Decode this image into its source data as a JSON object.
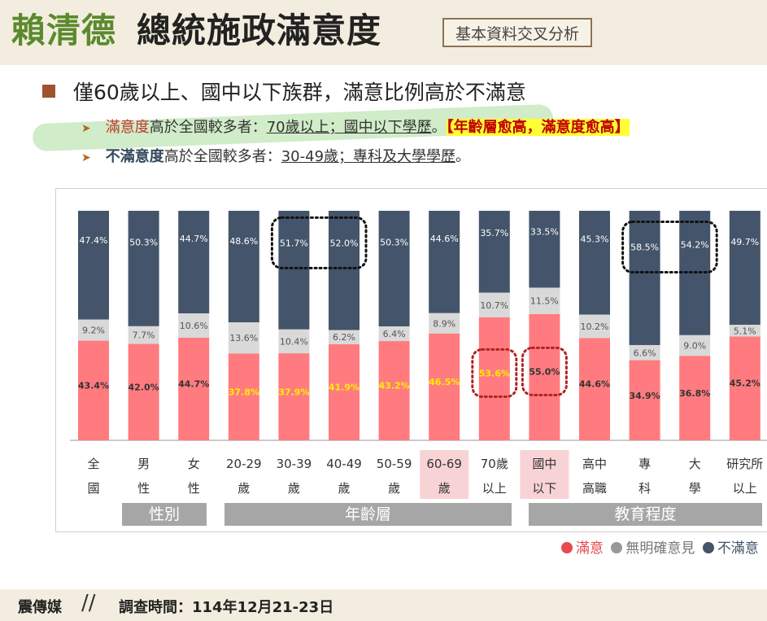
{
  "header": {
    "title_name": "賴清德",
    "title_rest": "總統施政滿意度",
    "tag": "基本資料交叉分析"
  },
  "summary": {
    "main": "僅60歲以上、國中以下族群，滿意比例高於不滿意",
    "line1": {
      "keyword": "滿意度",
      "text": "高於全國較多者：",
      "groups": "70歲以上；國中以下學歷",
      "period": "。",
      "emphasis": "【年齡層愈高，滿意度愈高】"
    },
    "line2": {
      "keyword": "不滿意度",
      "text": "高於全國較多者：",
      "groups": "30-49歲；專科及大學學歷",
      "period": "。"
    }
  },
  "chart_data": {
    "type": "bar",
    "stacked": true,
    "categories": [
      [
        "全",
        "國"
      ],
      [
        "男",
        "性"
      ],
      [
        "女",
        "性"
      ],
      [
        "20-29",
        "歲"
      ],
      [
        "30-39",
        "歲"
      ],
      [
        "40-49",
        "歲"
      ],
      [
        "50-59",
        "歲"
      ],
      [
        "60-69",
        "歲"
      ],
      [
        "70歲",
        "以上"
      ],
      [
        "國中",
        "以下"
      ],
      [
        "高中",
        "高職"
      ],
      [
        "專",
        "科"
      ],
      [
        "大",
        "學"
      ],
      [
        "研究所",
        "以上"
      ]
    ],
    "series": [
      {
        "name": "滿意",
        "color": "#ff7b7f",
        "values": [
          43.4,
          42.0,
          44.7,
          37.8,
          37.9,
          41.9,
          43.2,
          46.5,
          53.6,
          55.0,
          44.6,
          34.9,
          36.8,
          45.2
        ]
      },
      {
        "name": "無明確意見",
        "color": "#d9d9d9",
        "values": [
          9.2,
          7.7,
          10.6,
          13.6,
          10.4,
          6.2,
          6.4,
          8.9,
          10.7,
          11.5,
          10.2,
          6.6,
          9.0,
          5.1
        ]
      },
      {
        "name": "不滿意",
        "color": "#44546a",
        "values": [
          47.4,
          50.3,
          44.7,
          48.6,
          51.7,
          52.0,
          50.3,
          44.6,
          35.7,
          33.5,
          45.3,
          58.5,
          54.2,
          49.7
        ]
      }
    ],
    "groups": [
      {
        "label": "性別"
      },
      {
        "label": "年齡層"
      },
      {
        "label": "教育程度"
      }
    ],
    "highlighted_categories": [
      "60-69歲",
      "國中以下"
    ],
    "yellow_label_indices": [
      3,
      4,
      5,
      6,
      7,
      8
    ],
    "dotted_boxes": [
      "30-49歲 不滿意",
      "70歲以上 滿意",
      "國中以下 滿意",
      "專科/大學 不滿意"
    ],
    "ylim": [
      0,
      100
    ]
  },
  "legend": [
    "滿意",
    "無明確意見",
    "不滿意"
  ],
  "footer": {
    "brand": "震傳媒",
    "survey": "調查時間：114年12月21-23日"
  }
}
